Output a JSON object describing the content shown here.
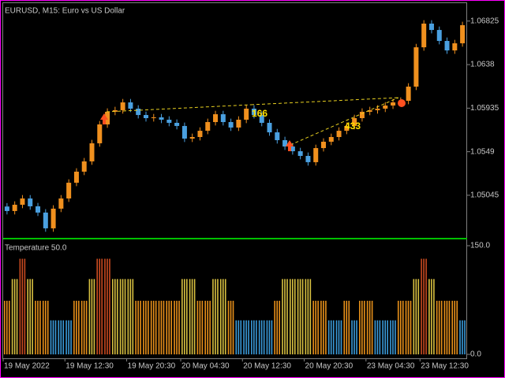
{
  "chart_data": [
    {
      "type": "candlestick",
      "title": "EURUSD, M15:  Euro vs US Dollar",
      "open": [
        1.0493,
        1.04884,
        1.04948,
        1.05012,
        1.04932,
        1.04868,
        1.04707,
        1.04908,
        1.05012,
        1.05173,
        1.05286,
        1.05391,
        1.05576,
        1.05769,
        1.05898,
        1.05914,
        1.05994,
        1.0593,
        1.05865,
        1.05833,
        1.05841,
        1.05817,
        1.05785,
        1.05753,
        1.05624,
        1.0564,
        1.05704,
        1.05793,
        1.05873,
        1.05793,
        1.05737,
        1.05817,
        1.0593,
        1.05865,
        1.05785,
        1.05688,
        1.05608,
        1.05543,
        1.05495,
        1.05447,
        1.05383,
        1.05527,
        1.05592,
        1.0564,
        1.05704,
        1.05753,
        1.05833,
        1.05898,
        1.05914,
        1.0593,
        1.05962,
        1.05994,
        1.0601,
        1.06155,
        1.06557,
        1.06799,
        1.06734,
        1.06622,
        1.06525,
        1.06598
      ],
      "high": [
        1.04965,
        1.04983,
        1.05047,
        1.05047,
        1.04967,
        1.04903,
        1.04943,
        1.05047,
        1.05208,
        1.05321,
        1.05426,
        1.05611,
        1.05804,
        1.05933,
        1.05949,
        1.06029,
        1.06029,
        1.05965,
        1.059,
        1.05876,
        1.05876,
        1.05852,
        1.0582,
        1.05788,
        1.05675,
        1.05739,
        1.05828,
        1.05908,
        1.05908,
        1.05828,
        1.05852,
        1.05965,
        1.05965,
        1.059,
        1.0582,
        1.05723,
        1.05643,
        1.05578,
        1.0553,
        1.05482,
        1.05562,
        1.05627,
        1.05675,
        1.05739,
        1.05788,
        1.05868,
        1.05933,
        1.05949,
        1.05965,
        1.05997,
        1.06029,
        1.06045,
        1.0619,
        1.06592,
        1.06834,
        1.06834,
        1.06769,
        1.06657,
        1.06633,
        1.06818
      ],
      "low": [
        1.04849,
        1.04849,
        1.04913,
        1.04897,
        1.04833,
        1.04672,
        1.04672,
        1.04873,
        1.04977,
        1.05138,
        1.05251,
        1.05356,
        1.05541,
        1.05734,
        1.05863,
        1.05879,
        1.05895,
        1.0583,
        1.05798,
        1.05798,
        1.05782,
        1.0575,
        1.05718,
        1.05589,
        1.05589,
        1.05605,
        1.05669,
        1.05758,
        1.05758,
        1.05702,
        1.05702,
        1.05782,
        1.0583,
        1.0575,
        1.05653,
        1.05573,
        1.05508,
        1.0546,
        1.05412,
        1.05348,
        1.05348,
        1.05492,
        1.05557,
        1.05605,
        1.05669,
        1.05718,
        1.05798,
        1.05863,
        1.05879,
        1.05895,
        1.05927,
        1.05959,
        1.05975,
        1.0612,
        1.06522,
        1.06699,
        1.06587,
        1.0649,
        1.0649,
        1.06563
      ],
      "close": [
        1.04884,
        1.04948,
        1.05012,
        1.04932,
        1.04868,
        1.04707,
        1.04908,
        1.05012,
        1.05173,
        1.05286,
        1.05391,
        1.05576,
        1.05769,
        1.05898,
        1.05914,
        1.05994,
        1.0593,
        1.05865,
        1.05833,
        1.05841,
        1.05817,
        1.05785,
        1.05753,
        1.05624,
        1.0564,
        1.05704,
        1.05793,
        1.05873,
        1.05793,
        1.05737,
        1.05817,
        1.0593,
        1.05865,
        1.05785,
        1.05688,
        1.05608,
        1.05543,
        1.05495,
        1.05447,
        1.05383,
        1.05527,
        1.05592,
        1.0564,
        1.05704,
        1.05753,
        1.05833,
        1.05898,
        1.05914,
        1.0593,
        1.05962,
        1.05994,
        1.0601,
        1.06155,
        1.06557,
        1.06799,
        1.06734,
        1.06622,
        1.06525,
        1.06598,
        1.06783
      ],
      "up_color": "#f0901e",
      "down_color": "#4aa0e0",
      "ylim": [
        1.0461,
        1.07
      ],
      "yticks": [
        1.06825,
        1.0638,
        1.05935,
        1.0549,
        1.05045
      ],
      "annotations": [
        "166",
        "433"
      ]
    },
    {
      "type": "bar",
      "title": "Temperature 50.0",
      "categories": [
        "19 May 2022",
        null,
        null,
        null,
        null,
        null,
        null,
        null,
        "19 May 12:30",
        null,
        null,
        null,
        null,
        null,
        null,
        null,
        "19 May 20:30",
        null,
        null,
        null,
        null,
        null,
        null,
        "20 May 04:30",
        null,
        null,
        null,
        null,
        null,
        null,
        null,
        "20 May 12:30",
        null,
        null,
        null,
        null,
        null,
        null,
        null,
        "20 May 20:30",
        null,
        null,
        null,
        null,
        null,
        null,
        null,
        "23 May 04:30",
        null,
        null,
        null,
        null,
        null,
        null,
        "23 May 12:30",
        null,
        null,
        null,
        null,
        null
      ],
      "values": [
        74,
        104,
        132,
        104,
        74,
        74,
        47,
        47,
        47,
        74,
        74,
        104,
        132,
        132,
        104,
        104,
        104,
        74,
        74,
        74,
        74,
        74,
        74,
        104,
        104,
        74,
        74,
        104,
        104,
        74,
        47,
        47,
        47,
        47,
        47,
        74,
        104,
        104,
        104,
        104,
        74,
        74,
        47,
        47,
        74,
        47,
        74,
        74,
        47,
        47,
        47,
        74,
        74,
        104,
        132,
        104,
        74,
        74,
        74,
        47
      ],
      "colors": [
        "#e8901a",
        "#d8c040",
        "#c84a20",
        "#d8c040",
        "#e8901a",
        "#e8901a",
        "#3a9ad9",
        "#3a9ad9",
        "#3a9ad9",
        "#e8901a",
        "#e8901a",
        "#d8c040",
        "#c84a20",
        "#c84a20",
        "#d8c040",
        "#d8c040",
        "#d8c040",
        "#e8901a",
        "#e8901a",
        "#e8901a",
        "#e8901a",
        "#e8901a",
        "#e8901a",
        "#d8c040",
        "#d8c040",
        "#e8901a",
        "#e8901a",
        "#d8c040",
        "#d8c040",
        "#e8901a",
        "#3a9ad9",
        "#3a9ad9",
        "#3a9ad9",
        "#3a9ad9",
        "#3a9ad9",
        "#e8901a",
        "#d8c040",
        "#d8c040",
        "#d8c040",
        "#d8c040",
        "#e8901a",
        "#e8901a",
        "#3a9ad9",
        "#3a9ad9",
        "#e8901a",
        "#3a9ad9",
        "#e8901a",
        "#e8901a",
        "#3a9ad9",
        "#3a9ad9",
        "#3a9ad9",
        "#e8901a",
        "#e8901a",
        "#d8c040",
        "#c84a20",
        "#d8c040",
        "#e8901a",
        "#e8901a",
        "#e8901a",
        "#3a9ad9"
      ],
      "ylim": [
        0,
        150
      ],
      "yticks": [
        {
          "value": 150,
          "label": "150.0"
        },
        {
          "value": 0,
          "label": "0.0"
        }
      ]
    }
  ]
}
